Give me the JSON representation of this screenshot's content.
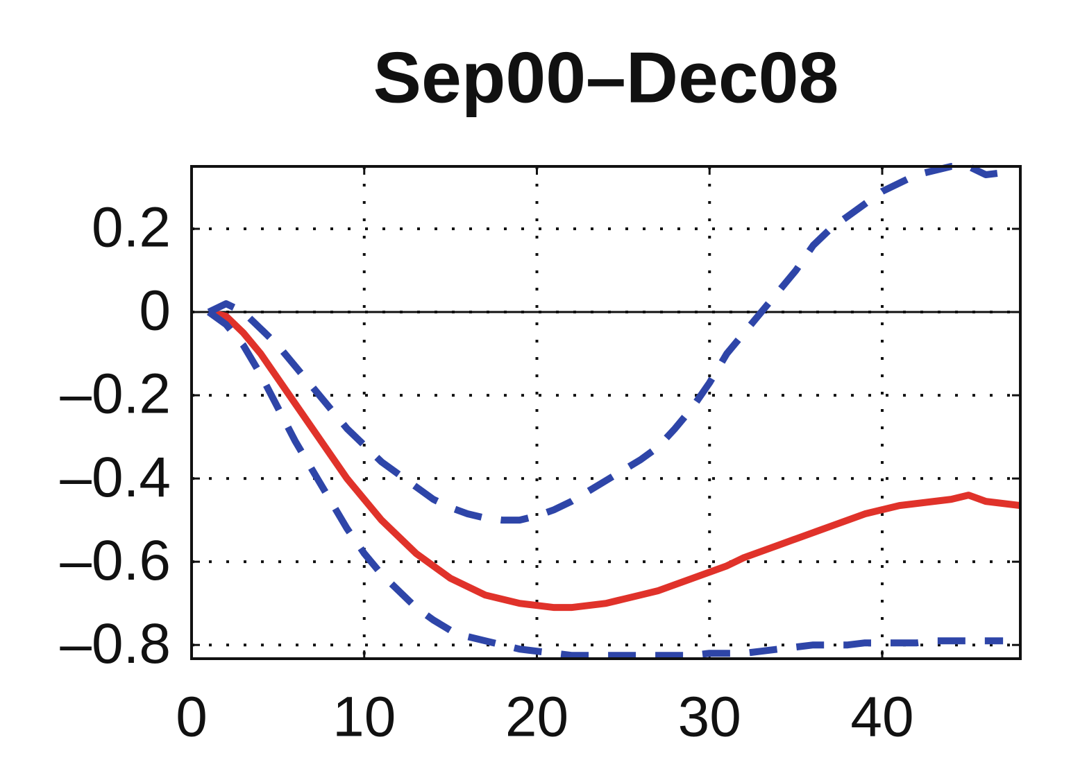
{
  "chart_data": {
    "type": "line",
    "title": "Sep00–Dec08",
    "x": [
      1,
      2,
      3,
      4,
      5,
      6,
      7,
      8,
      9,
      10,
      11,
      12,
      13,
      14,
      15,
      16,
      17,
      18,
      19,
      20,
      21,
      22,
      23,
      24,
      25,
      26,
      27,
      28,
      29,
      30,
      31,
      32,
      33,
      34,
      35,
      36,
      37,
      38,
      39,
      40,
      41,
      42,
      43,
      44,
      45,
      46,
      47,
      48
    ],
    "series": [
      {
        "color": "#e0322a",
        "dash": false,
        "values": [
          0,
          -0.01,
          -0.05,
          -0.1,
          -0.16,
          -0.22,
          -0.28,
          -0.34,
          -0.4,
          -0.45,
          -0.5,
          -0.54,
          -0.58,
          -0.61,
          -0.64,
          -0.66,
          -0.68,
          -0.69,
          -0.7,
          -0.705,
          -0.71,
          -0.71,
          -0.705,
          -0.7,
          -0.69,
          -0.68,
          -0.67,
          -0.655,
          -0.64,
          -0.625,
          -0.61,
          -0.59,
          -0.575,
          -0.56,
          -0.545,
          -0.53,
          -0.515,
          -0.5,
          -0.485,
          -0.475,
          -0.465,
          -0.46,
          -0.455,
          -0.45,
          -0.44,
          -0.455,
          -0.46,
          -0.465
        ]
      },
      {
        "color": "#2e45a8",
        "dash": true,
        "values": [
          0,
          0.02,
          0,
          -0.04,
          -0.08,
          -0.13,
          -0.18,
          -0.23,
          -0.28,
          -0.32,
          -0.36,
          -0.39,
          -0.42,
          -0.45,
          -0.47,
          -0.485,
          -0.495,
          -0.5,
          -0.5,
          -0.49,
          -0.475,
          -0.455,
          -0.43,
          -0.405,
          -0.38,
          -0.355,
          -0.325,
          -0.28,
          -0.23,
          -0.17,
          -0.1,
          -0.05,
          0,
          0.05,
          0.1,
          0.16,
          0.2,
          0.23,
          0.26,
          0.29,
          0.31,
          0.33,
          0.34,
          0.35,
          0.35,
          0.33,
          0.335,
          null
        ]
      },
      {
        "color": "#2e45a8",
        "dash": true,
        "values": [
          0,
          -0.03,
          -0.08,
          -0.15,
          -0.23,
          -0.31,
          -0.38,
          -0.45,
          -0.52,
          -0.58,
          -0.63,
          -0.67,
          -0.71,
          -0.74,
          -0.765,
          -0.78,
          -0.79,
          -0.8,
          -0.81,
          -0.815,
          -0.82,
          -0.825,
          -0.825,
          -0.825,
          -0.825,
          -0.825,
          -0.825,
          -0.825,
          -0.825,
          -0.82,
          -0.82,
          -0.82,
          -0.815,
          -0.81,
          -0.805,
          -0.8,
          -0.8,
          -0.8,
          -0.795,
          -0.795,
          -0.795,
          -0.795,
          -0.79,
          -0.79,
          -0.79,
          -0.79,
          -0.79,
          null
        ]
      }
    ],
    "xlim": [
      0,
      48
    ],
    "ylim": [
      -0.833,
      0.35
    ],
    "xticks": [
      0,
      10,
      20,
      30,
      40
    ],
    "yticks": [
      {
        "value": -0.8,
        "label": "–0.8"
      },
      {
        "value": -0.6,
        "label": "–0.6"
      },
      {
        "value": -0.4,
        "label": "–0.4"
      },
      {
        "value": -0.2,
        "label": "–0.2"
      },
      0,
      0.2
    ],
    "grid": true,
    "zero_line": true
  }
}
